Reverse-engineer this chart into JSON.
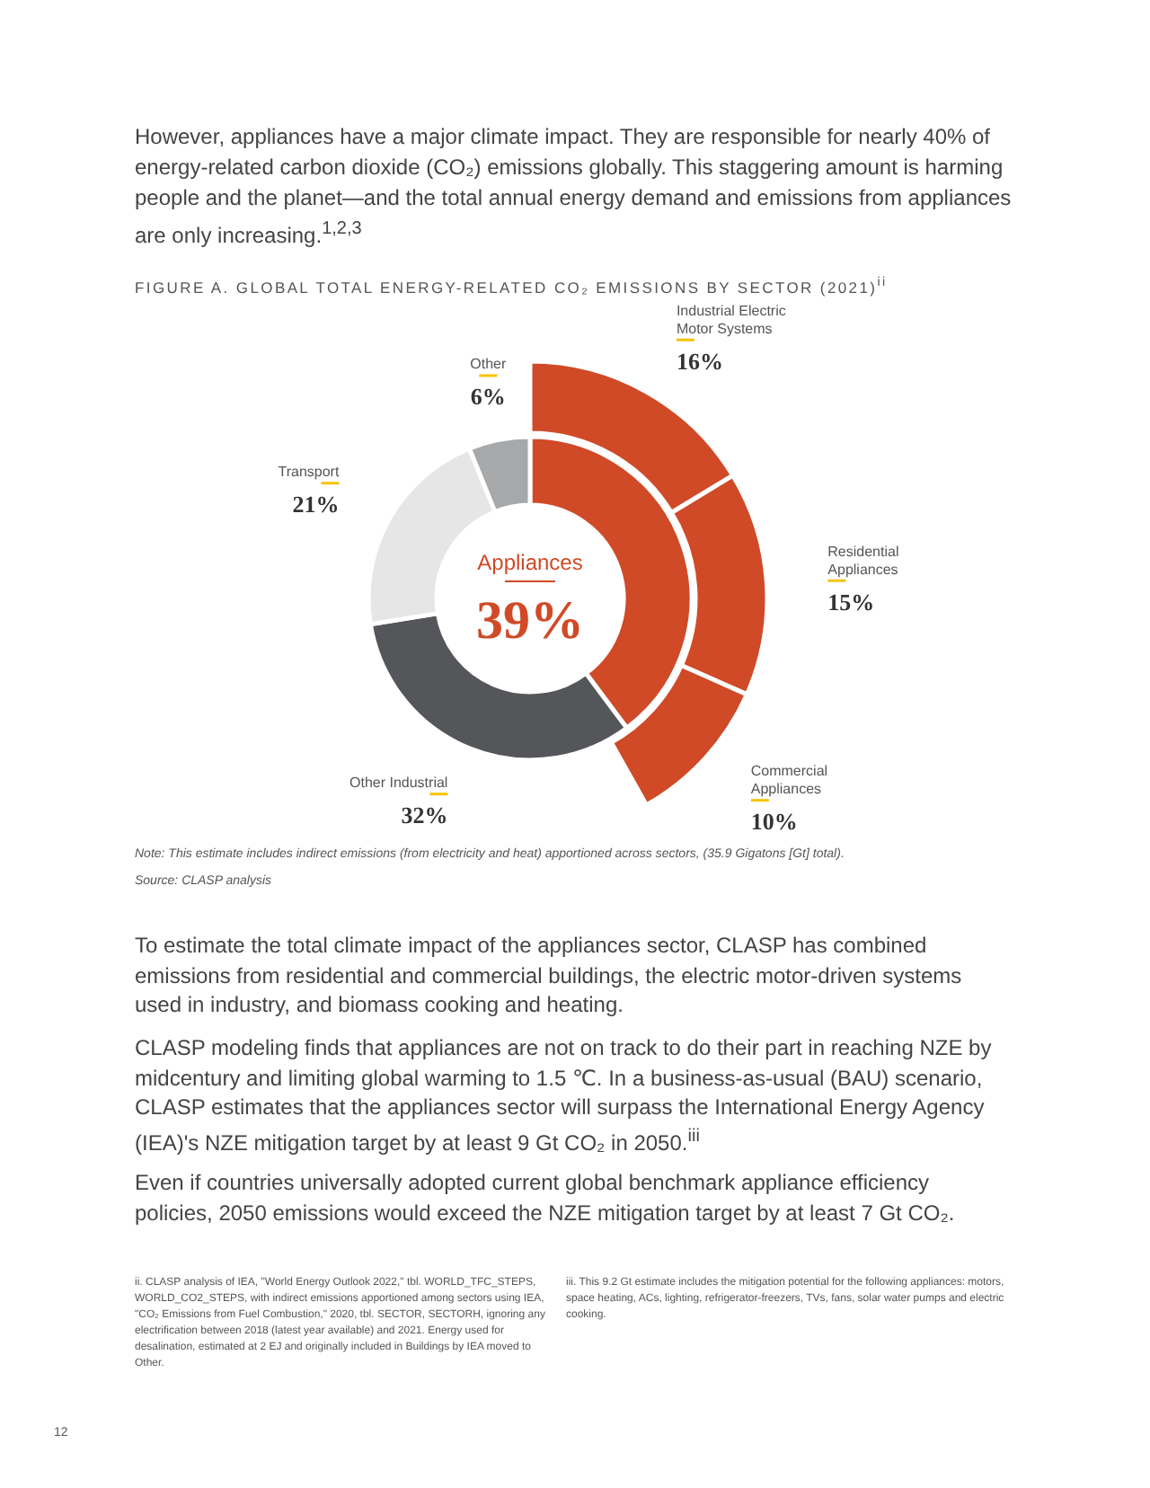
{
  "chart_data": [
    {
      "type": "donut",
      "title": "FIGURE A. GLOBAL TOTAL ENERGY-RELATED CO₂ EMISSIONS BY SECTOR (2021)$^{ii}$",
      "categories": [
        "Appliances",
        "Other Industrial",
        "Transport",
        "Other"
      ],
      "values": [
        39,
        32,
        21,
        6
      ],
      "colors": [
        "#d04a27",
        "#55565a",
        "#e6e6e7",
        "#a7a8aa"
      ],
      "value_labels": [
        "39%",
        "32%",
        "21%",
        "6%"
      ],
      "annotations": [
        "However, appliances have a major climate impact. They are responsible for nearly 40% of energy-related carbon dioxide (CO₂) emissions globally.  This staggering amount is harming people and the planet—and the total annual energy demand and emissions from appliances are only increasing.$^{1,2,3}$",
        "Note: This estimate includes indirect emissions (from electricity and heat) apportioned across sectors, (35.9 Gigatons [Gt] total).",
        "Source: CLASP analysis",
        "To estimate the total climate impact of the appliances sector, CLASP has combined emissions from residential and commercial buildings, the electric motor-driven systems used in industry, and biomass cooking and heating.",
        "CLASP modeling finds that appliances are not on track to do their part in reaching NZE by midcentury and limiting global warming to 1.5 ℃. In a business-as-usual (BAU) scenario, CLASP estimates that the appliances sector will surpass the International Energy Agency (IEA)'s NZE mitigation target by at least 9 Gt CO₂ in 2050.$^{iii}$",
        "Even if countries universally adopted current global benchmark appliance efficiency policies, 2050 emissions would exceed the NZE mitigation target by at least 7 Gt CO₂.",
        "ii.  CLASP analysis of IEA, \"World Energy Outlook 2022,\" tbl. WORLD_TFC_STEPS, WORLD_CO2_STEPS, with indirect emissions apportioned among sectors using IEA, \"CO₂ Emissions from Fuel Combustion,\" 2020, tbl. SECTOR, SECTORH, ignoring any electrification between 2018 (latest year available) and 2021. Energy used for desalination, estimated at 2 EJ and originally included in Buildings by IEA moved to Other.",
        "iii.  This 9.2 Gt estimate includes the mitigation potential for the following appliances: motors, space heating, ACs, lighting, refrigerator-freezers, TVs, fans, solar water pumps and electric cooking.",
        "12"
      ]
    },
    {
      "type": "donut",
      "categories": [
        "Industrial Electric Motor Systems",
        "Residential Appliances",
        "Commercial Appliances"
      ],
      "values": [
        16,
        15,
        10
      ],
      "colors": [
        "#d04a27",
        "#d04a27",
        "#d04a27"
      ],
      "value_labels": [
        "16%",
        "15%",
        "10%"
      ]
    }
  ]
}
